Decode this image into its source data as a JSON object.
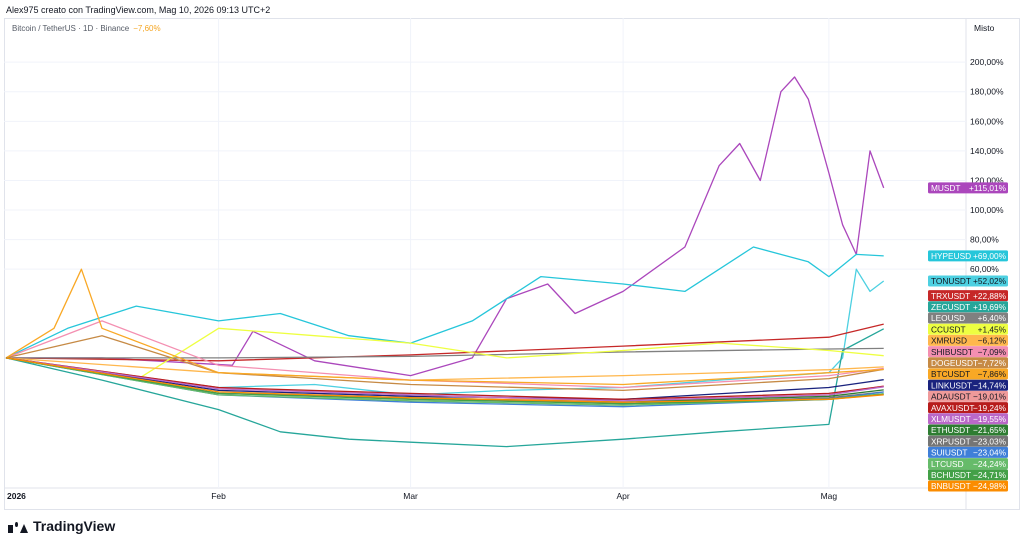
{
  "header": {
    "text": "Alex975 creato con TradingView.com, Mag 10, 2026 09:13 UTC+2"
  },
  "legend": {
    "symbol": "Bitcoin / TetherUS · 1D · Binance",
    "change": "−7,60%"
  },
  "scale_mode": "Misto",
  "brand": {
    "name": "TradingView",
    "logo": "tradingview-logo"
  },
  "chart_data": {
    "type": "line",
    "title": "",
    "xlabel": "",
    "ylabel": "",
    "x_tick_labels": [
      "2026",
      "Feb",
      "Mar",
      "Apr",
      "Mag"
    ],
    "x_ticks": [
      "2026-01-01",
      "2026-02-01",
      "2026-03-01",
      "2026-04-01",
      "2026-05-01"
    ],
    "y_tick_labels": [
      "200,00%",
      "180,00%",
      "160,00%",
      "140,00%",
      "120,00%",
      "100,00%",
      "80,00%",
      "60,00%"
    ],
    "y_ticks": [
      200,
      180,
      160,
      140,
      120,
      100,
      80,
      60
    ],
    "ylim": [
      -88,
      215
    ],
    "grid": true,
    "series": [
      {
        "name": "MUSDT",
        "label": "+115,01%",
        "color": "#ab47bc",
        "x": [
          "2026-01-01",
          "2026-01-15",
          "2026-02-03",
          "2026-02-06",
          "2026-02-15",
          "2026-03-01",
          "2026-03-10",
          "2026-03-15",
          "2026-03-21",
          "2026-03-25",
          "2026-04-01",
          "2026-04-10",
          "2026-04-15",
          "2026-04-18",
          "2026-04-21",
          "2026-04-24",
          "2026-04-26",
          "2026-04-28",
          "2026-05-01",
          "2026-05-03",
          "2026-05-05",
          "2026-05-07",
          "2026-05-09"
        ],
        "values": [
          0,
          0,
          -5,
          18,
          -2,
          -12,
          0,
          40,
          50,
          30,
          45,
          75,
          130,
          145,
          120,
          180,
          190,
          175,
          125,
          90,
          70,
          140,
          115
        ]
      },
      {
        "name": "HYPEUSD",
        "label": "+69,00%",
        "color": "#26c6da",
        "x": [
          "2026-01-01",
          "2026-01-10",
          "2026-01-20",
          "2026-02-01",
          "2026-02-10",
          "2026-02-20",
          "2026-03-01",
          "2026-03-10",
          "2026-03-20",
          "2026-04-01",
          "2026-04-10",
          "2026-04-20",
          "2026-04-28",
          "2026-05-01",
          "2026-05-05",
          "2026-05-09"
        ],
        "values": [
          0,
          20,
          35,
          25,
          30,
          15,
          10,
          25,
          55,
          50,
          45,
          75,
          65,
          55,
          70,
          69
        ]
      },
      {
        "name": "TONUSDT",
        "label": "+52,02%",
        "color": "#4dd0e1",
        "x": [
          "2026-01-01",
          "2026-01-15",
          "2026-02-01",
          "2026-02-15",
          "2026-03-01",
          "2026-03-15",
          "2026-04-01",
          "2026-04-15",
          "2026-05-01",
          "2026-05-03",
          "2026-05-05",
          "2026-05-07",
          "2026-05-09"
        ],
        "values": [
          0,
          -10,
          -20,
          -18,
          -25,
          -22,
          -20,
          -15,
          -10,
          0,
          60,
          45,
          52
        ]
      },
      {
        "name": "TRXUSDT",
        "label": "+22,88%",
        "color": "#c62828",
        "x": [
          "2026-01-01",
          "2026-02-01",
          "2026-03-01",
          "2026-04-01",
          "2026-05-01",
          "2026-05-09"
        ],
        "values": [
          0,
          -2,
          2,
          8,
          14,
          22.88
        ]
      },
      {
        "name": "ZECUSDT",
        "label": "+19,69%",
        "color": "#26a69a",
        "x": [
          "2026-01-01",
          "2026-01-15",
          "2026-02-01",
          "2026-02-10",
          "2026-02-20",
          "2026-03-01",
          "2026-03-15",
          "2026-04-01",
          "2026-04-15",
          "2026-05-01",
          "2026-05-03",
          "2026-05-09"
        ],
        "values": [
          0,
          -15,
          -35,
          -50,
          -55,
          -57,
          -60,
          -55,
          -50,
          -45,
          5,
          19.69
        ]
      },
      {
        "name": "LEOUSD",
        "label": "+6,40%",
        "color": "#808080",
        "x": [
          "2026-01-01",
          "2026-02-01",
          "2026-03-01",
          "2026-04-01",
          "2026-05-01",
          "2026-05-09"
        ],
        "values": [
          0,
          0,
          1,
          4,
          6,
          6.4
        ]
      },
      {
        "name": "CCUSDT",
        "label": "+1,45%",
        "color": "#eeff41",
        "x": [
          "2026-01-01",
          "2026-01-20",
          "2026-02-01",
          "2026-02-15",
          "2026-03-01",
          "2026-03-15",
          "2026-04-01",
          "2026-04-15",
          "2026-05-01",
          "2026-05-09"
        ],
        "values": [
          0,
          -15,
          20,
          15,
          10,
          0,
          5,
          10,
          5,
          1.45
        ]
      },
      {
        "name": "XMRUSD",
        "label": "−6,12%",
        "color": "#ffb74d",
        "x": [
          "2026-01-01",
          "2026-02-01",
          "2026-03-01",
          "2026-04-01",
          "2026-05-01",
          "2026-05-09"
        ],
        "values": [
          0,
          -10,
          -15,
          -12,
          -8,
          -6.12
        ]
      },
      {
        "name": "SHIBUSDT",
        "label": "−7,09%",
        "color": "#f48fb1",
        "x": [
          "2026-01-01",
          "2026-01-15",
          "2026-02-01",
          "2026-03-01",
          "2026-04-01",
          "2026-05-01",
          "2026-05-09"
        ],
        "values": [
          0,
          25,
          -5,
          -15,
          -20,
          -12,
          -7.09
        ]
      },
      {
        "name": "DOGEUSDT",
        "label": "−7,72%",
        "color": "#c68a45",
        "x": [
          "2026-01-01",
          "2026-01-15",
          "2026-02-01",
          "2026-03-01",
          "2026-04-01",
          "2026-05-01",
          "2026-05-09"
        ],
        "values": [
          0,
          15,
          -10,
          -18,
          -22,
          -14,
          -7.72
        ]
      },
      {
        "name": "BTCUSDT",
        "label": "−7,86%",
        "color": "#f9a825",
        "x": [
          "2026-01-01",
          "2026-01-08",
          "2026-01-12",
          "2026-01-15",
          "2026-02-01",
          "2026-03-01",
          "2026-04-01",
          "2026-05-01",
          "2026-05-09"
        ],
        "values": [
          0,
          20,
          60,
          20,
          -10,
          -15,
          -18,
          -10,
          -7.86
        ]
      },
      {
        "name": "LINKUSDT",
        "label": "−14,74%",
        "color": "#1a237e",
        "x": [
          "2026-01-01",
          "2026-02-01",
          "2026-03-01",
          "2026-04-01",
          "2026-05-01",
          "2026-05-09"
        ],
        "values": [
          0,
          -22,
          -26,
          -28,
          -20,
          -14.74
        ]
      },
      {
        "name": "ADAUSDT",
        "label": "−19,01%",
        "color": "#ef9a9a",
        "x": [
          "2026-01-01",
          "2026-02-01",
          "2026-03-01",
          "2026-04-01",
          "2026-05-01",
          "2026-05-09"
        ],
        "values": [
          0,
          -20,
          -25,
          -30,
          -25,
          -19.01
        ]
      },
      {
        "name": "AVAXUSDT",
        "label": "−19,24%",
        "color": "#b71c1c",
        "x": [
          "2026-01-01",
          "2026-02-01",
          "2026-03-01",
          "2026-04-01",
          "2026-05-01",
          "2026-05-09"
        ],
        "values": [
          0,
          -20,
          -24,
          -28,
          -24,
          -19.24
        ]
      },
      {
        "name": "XLMUSDT",
        "label": "−19,55%",
        "color": "#ba68c8",
        "x": [
          "2026-01-01",
          "2026-02-01",
          "2026-03-01",
          "2026-04-01",
          "2026-05-01",
          "2026-05-09"
        ],
        "values": [
          0,
          -21,
          -25,
          -29,
          -25,
          -19.55
        ]
      },
      {
        "name": "ETHUSDT",
        "label": "−21,65%",
        "color": "#2e7d32",
        "x": [
          "2026-01-01",
          "2026-02-01",
          "2026-03-01",
          "2026-04-01",
          "2026-05-01",
          "2026-05-09"
        ],
        "values": [
          0,
          -24,
          -27,
          -30,
          -26,
          -21.65
        ]
      },
      {
        "name": "XRPUSDT",
        "label": "−23,03%",
        "color": "#757575",
        "x": [
          "2026-01-01",
          "2026-02-01",
          "2026-03-01",
          "2026-04-01",
          "2026-05-01",
          "2026-05-09"
        ],
        "values": [
          0,
          -24,
          -27,
          -31,
          -27,
          -23.03
        ]
      },
      {
        "name": "SUIUSDT",
        "label": "−23,04%",
        "color": "#3f7fd8",
        "x": [
          "2026-01-01",
          "2026-02-01",
          "2026-03-01",
          "2026-04-01",
          "2026-05-01",
          "2026-05-09"
        ],
        "values": [
          0,
          -25,
          -30,
          -33,
          -28,
          -23.04
        ]
      },
      {
        "name": "LTCUSD",
        "label": "−24,24%",
        "color": "#66bb6a",
        "x": [
          "2026-01-01",
          "2026-02-01",
          "2026-03-01",
          "2026-04-01",
          "2026-05-01",
          "2026-05-09"
        ],
        "values": [
          0,
          -25,
          -29,
          -32,
          -28,
          -24.24
        ]
      },
      {
        "name": "BCHUSDT",
        "label": "−24,71%",
        "color": "#43a047",
        "x": [
          "2026-01-01",
          "2026-02-01",
          "2026-03-01",
          "2026-04-01",
          "2026-05-01",
          "2026-05-09"
        ],
        "values": [
          0,
          -24,
          -28,
          -31,
          -28,
          -24.71
        ]
      },
      {
        "name": "BNBUSDT",
        "label": "−24,98%",
        "color": "#fb8c00",
        "x": [
          "2026-01-01",
          "2026-02-01",
          "2026-03-01",
          "2026-04-01",
          "2026-05-01",
          "2026-05-09"
        ],
        "values": [
          0,
          -23,
          -27,
          -30,
          -28,
          -24.98
        ]
      }
    ]
  }
}
